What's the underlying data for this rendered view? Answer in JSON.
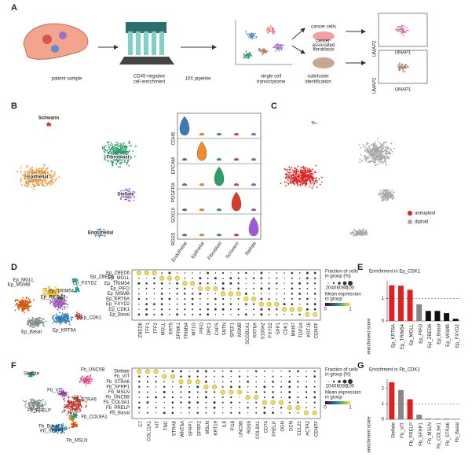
{
  "panel_a": {
    "label": "A",
    "steps": [
      [
        "patient sample"
      ],
      [
        "CD45-negative",
        "cell enrichment"
      ],
      [
        "10X pipeline"
      ],
      [
        "single cell",
        "transcriptome"
      ],
      [
        "subcluster",
        "identification"
      ]
    ],
    "branches": [
      [
        "cancer cells"
      ],
      [
        "cancer-",
        "associated",
        "fibroblasts"
      ]
    ],
    "umap_y": "UMAP2",
    "umap_x": "UMAP1"
  },
  "panel_b": {
    "label": "B",
    "clusters": [
      "Schwann",
      "Fibroblast",
      "Epithelial",
      "Stellate",
      "Endothelial"
    ],
    "violin_genes": [
      "CDH5",
      "EPCAM",
      "PDGFRA",
      "SOX10",
      "RGS5"
    ],
    "violin_groups": [
      "Endothelial",
      "Epithelial",
      "Fibroblast",
      "Schwann",
      "Stellate"
    ],
    "colors": [
      "#3a7ab5",
      "#f28c28",
      "#2e9e6a",
      "#d43c2f",
      "#a05ad8"
    ]
  },
  "panel_c": {
    "label": "C",
    "legend": [
      "aneuploid",
      "diploid"
    ],
    "colors": [
      "#e02020",
      "#a8a8a8"
    ]
  },
  "panel_d": {
    "label": "D",
    "clusters": [
      "Ep_ZBED6",
      "Ep_MGLL",
      "Ep_TRIM54",
      "Ep_PIFO",
      "Ep_MSMB",
      "Ep_KRT6A",
      "Ep_FXYD2",
      "Ep_CDK1",
      "Ep_Basal"
    ],
    "colors": [
      "#2aa6a0",
      "#e0b020",
      "#9b59b6",
      "#555555",
      "#d35400",
      "#2c7fb8",
      "#16a085",
      "#c0392b",
      "#7f8c8d"
    ],
    "genes": [
      "ZBED6",
      "TFF1",
      "TFF2",
      "MGLL",
      "KRT5",
      "SPINK1",
      "TRIM54",
      "MT1G",
      "PIFO",
      "DRC1",
      "CAPS",
      "SNTN",
      "SPEF1",
      "MSMB",
      "SCGB1A1",
      "KRT6A",
      "S100A2",
      "FXYD2",
      "SPP1",
      "CDK1",
      "MKI67",
      "TOP2A",
      "KRT15",
      "CENPF"
    ],
    "legend_size": [
      "Fraction of cells",
      "in group (%)"
    ],
    "legend_color": [
      "Mean expression",
      "in group"
    ],
    "size_ticks": [
      "20",
      "40",
      "60",
      "80",
      "100"
    ],
    "color_ticks": [
      "0",
      "1"
    ]
  },
  "panel_e": {
    "type": "bar",
    "label": "E",
    "title": "Enrichment in Ep_CDK1",
    "ylabel": "enrichment score",
    "categories": [
      "Ep_KRT6A",
      "Ep_TRIM54",
      "Ep_MGLL",
      "Ep_PIFO",
      "Ep_ZBED6",
      "Ep_Basal",
      "Ep_MSMB",
      "Ep_FXYD2"
    ],
    "values": [
      1.6,
      1.58,
      1.4,
      0.75,
      0.45,
      0.45,
      0.35,
      0.1
    ],
    "colors": [
      "#e02020",
      "#e02020",
      "#e02020",
      "#888888",
      "#111111",
      "#111111",
      "#111111",
      "#111111"
    ],
    "ylim": [
      0,
      1.8
    ],
    "yticks": [
      0,
      1
    ],
    "reference_line": 1
  },
  "panel_f": {
    "label": "F",
    "clusters": [
      "Stellate",
      "Fb_VIT",
      "Fb_STRA6",
      "Fb_SFRP1",
      "Fb_MSLN",
      "Fb_UNC5B",
      "Fb_COL9A1",
      "Fb_PRELP",
      "Fb_Basal"
    ],
    "colors": [
      "#2e9e6a",
      "#c0392b",
      "#8e44ad",
      "#2c7fb8",
      "#d35400",
      "#e05090",
      "#b8860b",
      "#16a085",
      "#7f8c8d"
    ],
    "genes": [
      "C7",
      "COL11A1",
      "VIT",
      "TNC",
      "STRA6",
      "WNT5A",
      "SFRP1",
      "SFRP2",
      "MSLN",
      "KRT19",
      "IL6",
      "PI16",
      "UNC5B",
      "RGS5",
      "COL9A1",
      "CD74",
      "PRELP",
      "OGN",
      "DCN",
      "CCL21",
      "ACTA2",
      "CENPF"
    ],
    "legend_size": [
      "Fraction of cells",
      "in group (%)"
    ],
    "legend_color": [
      "Mean expression",
      "in group"
    ],
    "size_ticks": [
      "20",
      "40",
      "60",
      "80",
      "100"
    ],
    "color_ticks": [
      "0",
      "1"
    ]
  },
  "panel_g": {
    "type": "bar",
    "label": "G",
    "title": "Enrichment in Fb_CDK1",
    "ylabel": "enrichment score",
    "categories": [
      "Stellate",
      "Fb_VIT",
      "Fb_PRELP",
      "Fb_SFRP1",
      "Fb_MSLN",
      "Fb_COL9A1",
      "Fb_STRA6",
      "Fb_Basal"
    ],
    "values": [
      2.4,
      1.9,
      1.3,
      0.3,
      0.03,
      0.02,
      0.02,
      0.01
    ],
    "colors": [
      "#e02020",
      "#888888",
      "#e02020",
      "#888888",
      "#111111",
      "#111111",
      "#111111",
      "#111111"
    ],
    "ylim": [
      0,
      2.6
    ],
    "yticks": [
      0,
      1,
      2
    ],
    "reference_line": 1
  }
}
